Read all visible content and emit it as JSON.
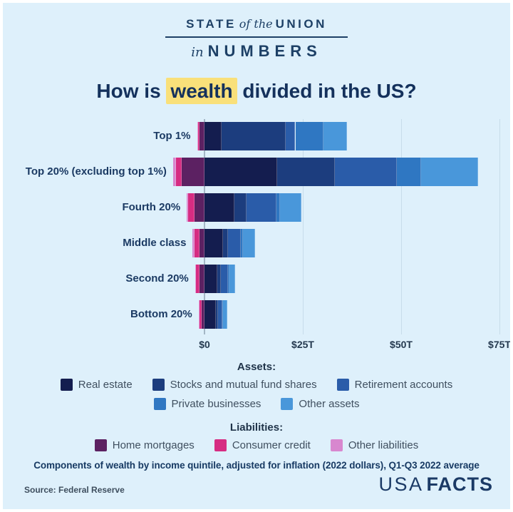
{
  "banner": {
    "state": "STATE",
    "of_the": "of the",
    "union": "UNION",
    "in": "in",
    "numbers": "NUMBERS"
  },
  "title": {
    "prefix": "How is ",
    "highlight": "wealth",
    "suffix": " divided in the US?"
  },
  "chart_data": {
    "type": "bar",
    "orientation": "horizontal",
    "stacked": true,
    "units": "trillions of US dollars",
    "title": "How is wealth divided in the US?",
    "categories": [
      "Top 1%",
      "Top 20% (excluding top 1%)",
      "Fourth 20%",
      "Middle class",
      "Second 20%",
      "Bottom 20%"
    ],
    "asset_series": [
      {
        "name": "Real estate",
        "color": "#141d4f",
        "values": [
          4.4,
          18.5,
          7.6,
          4.7,
          3.3,
          2.9
        ]
      },
      {
        "name": "Stocks and mutual fund shares",
        "color": "#1c3d7e",
        "values": [
          16.3,
          14.7,
          3.1,
          1.3,
          0.9,
          0.5
        ]
      },
      {
        "name": "Retirement accounts",
        "color": "#2a5ca9",
        "values": [
          2.4,
          15.8,
          7.6,
          3.3,
          1.8,
          1.2
        ]
      },
      {
        "name": "Private businesses",
        "color": "#2f77c2",
        "values": [
          7.2,
          6.0,
          0.9,
          0.5,
          0.3,
          0.2
        ]
      },
      {
        "name": "Other assets",
        "color": "#4997da",
        "values": [
          6.0,
          14.5,
          5.4,
          3.1,
          1.5,
          1.0
        ]
      }
    ],
    "liability_series": [
      {
        "name": "Home mortgages",
        "color": "#5c2162",
        "values": [
          1.2,
          5.8,
          2.5,
          1.3,
          1.3,
          0.7
        ]
      },
      {
        "name": "Consumer credit",
        "color": "#d62c82",
        "values": [
          0.4,
          1.5,
          1.6,
          1.3,
          0.9,
          0.6
        ]
      },
      {
        "name": "Other liabilities",
        "color": "#d887cf",
        "values": [
          0.3,
          0.7,
          0.4,
          0.4,
          0.2,
          0.2
        ]
      }
    ],
    "x_ticks": [
      {
        "label": "$0",
        "value": 0
      },
      {
        "label": "$25T",
        "value": 25
      },
      {
        "label": "$50T",
        "value": 50
      },
      {
        "label": "$75T",
        "value": 75
      }
    ],
    "xlim": [
      -10,
      78
    ],
    "grid": "vertical",
    "legend": {
      "assets_title": "Assets:",
      "liabilities_title": "Liabilities:",
      "position": "below"
    }
  },
  "note": "Components of wealth by income quintile, adjusted for inflation (2022 dollars), Q1-Q3 2022 average",
  "source": "Source: Federal Reserve",
  "logo": {
    "light": "USA",
    "bold": "FACTS"
  },
  "colors": {
    "background": "#def0fb",
    "navy_text": "#1d4066",
    "title_text": "#14315c",
    "highlight_yellow": "#f9e07a",
    "gridline": "#c7dcea",
    "zero_line": "#a4b7c6"
  }
}
